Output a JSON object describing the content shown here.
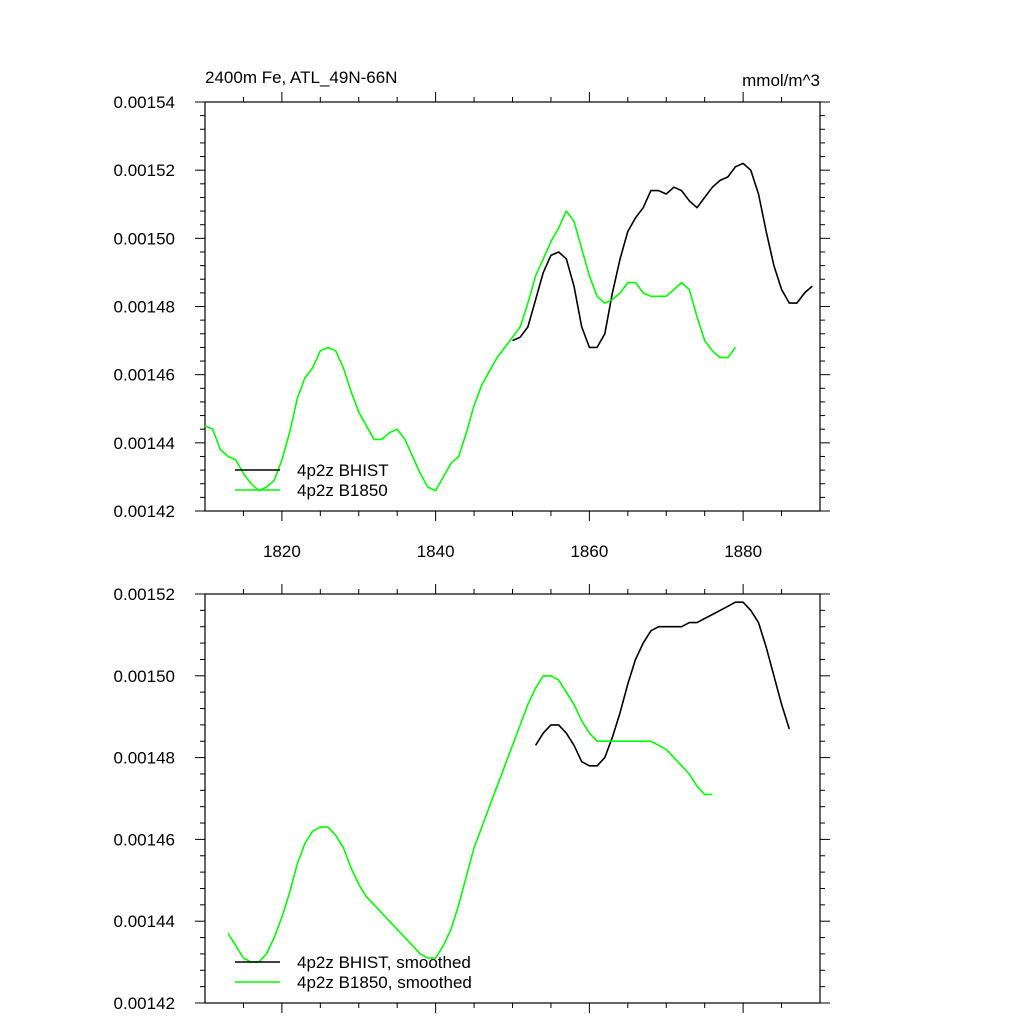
{
  "chart_data": [
    {
      "type": "line",
      "title": "2400m Fe, ATL_49N-66N",
      "units": "mmol/m^3",
      "xlabel": "",
      "ylabel": "",
      "xlim": [
        1810,
        1890
      ],
      "ylim": [
        0.00142,
        0.00154
      ],
      "x_ticks": [
        1820,
        1840,
        1860,
        1880
      ],
      "x_tick_labels": [
        "1820",
        "1840",
        "1860",
        "1880"
      ],
      "y_ticks": [
        0.00142,
        0.00144,
        0.00146,
        0.00148,
        0.0015,
        0.00152,
        0.00154
      ],
      "y_tick_labels": [
        "0.00142",
        "0.00144",
        "0.00146",
        "0.00148",
        "0.00150",
        "0.00152",
        "0.00154"
      ],
      "legend_position": "bottom-left",
      "series": [
        {
          "name": "4p2z BHIST",
          "color": "#000000",
          "x": [
            1850,
            1851,
            1852,
            1853,
            1854,
            1855,
            1856,
            1857,
            1858,
            1859,
            1860,
            1861,
            1862,
            1863,
            1864,
            1865,
            1866,
            1867,
            1868,
            1869,
            1870,
            1871,
            1872,
            1873,
            1874,
            1875,
            1876,
            1877,
            1878,
            1879,
            1880,
            1881,
            1882,
            1883,
            1884,
            1885,
            1886,
            1887,
            1888,
            1889
          ],
          "values": [
            0.00147,
            0.001471,
            0.001474,
            0.001482,
            0.00149,
            0.001495,
            0.001496,
            0.001494,
            0.001486,
            0.001474,
            0.001468,
            0.001468,
            0.001472,
            0.001484,
            0.001494,
            0.001502,
            0.001506,
            0.001509,
            0.001514,
            0.001514,
            0.001513,
            0.001515,
            0.001514,
            0.001511,
            0.001509,
            0.001512,
            0.001515,
            0.001517,
            0.001518,
            0.001521,
            0.001522,
            0.00152,
            0.001513,
            0.001502,
            0.001492,
            0.001485,
            0.001481,
            0.001481,
            0.001484,
            0.001486
          ]
        },
        {
          "name": "4p2z B1850",
          "color": "#00ff00",
          "x": [
            1810,
            1811,
            1812,
            1813,
            1814,
            1815,
            1816,
            1817,
            1818,
            1819,
            1820,
            1821,
            1822,
            1823,
            1824,
            1825,
            1826,
            1827,
            1828,
            1829,
            1830,
            1831,
            1832,
            1833,
            1834,
            1835,
            1836,
            1837,
            1838,
            1839,
            1840,
            1841,
            1842,
            1843,
            1844,
            1845,
            1846,
            1847,
            1848,
            1849,
            1850,
            1851,
            1852,
            1853,
            1854,
            1855,
            1856,
            1857,
            1858,
            1859,
            1860,
            1861,
            1862,
            1863,
            1864,
            1865,
            1866,
            1867,
            1868,
            1869,
            1870,
            1871,
            1872,
            1873,
            1874,
            1875,
            1876,
            1877,
            1878,
            1879
          ],
          "values": [
            0.001445,
            0.001444,
            0.001438,
            0.001436,
            0.001435,
            0.001431,
            0.001428,
            0.001426,
            0.001427,
            0.001429,
            0.001435,
            0.001443,
            0.001453,
            0.001459,
            0.001462,
            0.001467,
            0.001468,
            0.001467,
            0.001462,
            0.001455,
            0.001449,
            0.001445,
            0.001441,
            0.001441,
            0.001443,
            0.001444,
            0.001441,
            0.001436,
            0.001431,
            0.001427,
            0.001426,
            0.00143,
            0.001434,
            0.001436,
            0.001443,
            0.001451,
            0.001457,
            0.001461,
            0.001465,
            0.001468,
            0.001471,
            0.001474,
            0.001481,
            0.001489,
            0.001494,
            0.001499,
            0.001503,
            0.001508,
            0.001505,
            0.001497,
            0.001489,
            0.001483,
            0.001481,
            0.001482,
            0.001484,
            0.001487,
            0.001487,
            0.001484,
            0.001483,
            0.001483,
            0.001483,
            0.001485,
            0.001487,
            0.001485,
            0.001477,
            0.00147,
            0.001467,
            0.001465,
            0.001465,
            0.001468
          ]
        }
      ]
    },
    {
      "type": "line",
      "title": "",
      "xlabel": "",
      "ylabel": "",
      "xlim": [
        1810,
        1890
      ],
      "ylim": [
        0.00142,
        0.00152
      ],
      "x_ticks": [
        1820,
        1840,
        1860,
        1880
      ],
      "x_tick_labels": [],
      "y_ticks": [
        0.00142,
        0.00144,
        0.00146,
        0.00148,
        0.0015,
        0.00152
      ],
      "y_tick_labels": [
        "0.00142",
        "0.00144",
        "0.00146",
        "0.00148",
        "0.00150",
        "0.00152"
      ],
      "legend_position": "bottom-left",
      "series": [
        {
          "name": "4p2z BHIST, smoothed",
          "color": "#000000",
          "x": [
            1853,
            1854,
            1855,
            1856,
            1857,
            1858,
            1859,
            1860,
            1861,
            1862,
            1863,
            1864,
            1865,
            1866,
            1867,
            1868,
            1869,
            1870,
            1871,
            1872,
            1873,
            1874,
            1875,
            1876,
            1877,
            1878,
            1879,
            1880,
            1881,
            1882,
            1883,
            1884,
            1885,
            1886
          ],
          "values": [
            0.001483,
            0.001486,
            0.001488,
            0.001488,
            0.001486,
            0.001483,
            0.001479,
            0.001478,
            0.001478,
            0.00148,
            0.001485,
            0.001491,
            0.001498,
            0.001504,
            0.001508,
            0.001511,
            0.001512,
            0.001512,
            0.001512,
            0.001512,
            0.001513,
            0.001513,
            0.001514,
            0.001515,
            0.001516,
            0.001517,
            0.001518,
            0.001518,
            0.001516,
            0.001513,
            0.001507,
            0.0015,
            0.001493,
            0.001487
          ]
        },
        {
          "name": "4p2z B1850, smoothed",
          "color": "#00ff00",
          "x": [
            1813,
            1814,
            1815,
            1816,
            1817,
            1818,
            1819,
            1820,
            1821,
            1822,
            1823,
            1824,
            1825,
            1826,
            1827,
            1828,
            1829,
            1830,
            1831,
            1832,
            1833,
            1834,
            1835,
            1836,
            1837,
            1838,
            1839,
            1840,
            1841,
            1842,
            1843,
            1844,
            1845,
            1846,
            1847,
            1848,
            1849,
            1850,
            1851,
            1852,
            1853,
            1854,
            1855,
            1856,
            1857,
            1858,
            1859,
            1860,
            1861,
            1862,
            1863,
            1864,
            1865,
            1866,
            1867,
            1868,
            1869,
            1870,
            1871,
            1872,
            1873,
            1874,
            1875,
            1876
          ],
          "values": [
            0.001437,
            0.001434,
            0.001431,
            0.00143,
            0.00143,
            0.001432,
            0.001436,
            0.001441,
            0.001447,
            0.001454,
            0.001459,
            0.001462,
            0.001463,
            0.001463,
            0.001461,
            0.001458,
            0.001453,
            0.001449,
            0.001446,
            0.001444,
            0.001442,
            0.00144,
            0.001438,
            0.001436,
            0.001434,
            0.001432,
            0.001431,
            0.001431,
            0.001434,
            0.001438,
            0.001444,
            0.001451,
            0.001458,
            0.001463,
            0.001468,
            0.001473,
            0.001478,
            0.001483,
            0.001488,
            0.001493,
            0.001497,
            0.0015,
            0.0015,
            0.001499,
            0.001496,
            0.001493,
            0.001489,
            0.001486,
            0.001484,
            0.001484,
            0.001484,
            0.001484,
            0.001484,
            0.001484,
            0.001484,
            0.001484,
            0.001483,
            0.001482,
            0.00148,
            0.001478,
            0.001476,
            0.001473,
            0.001471,
            0.001471
          ]
        }
      ]
    }
  ]
}
